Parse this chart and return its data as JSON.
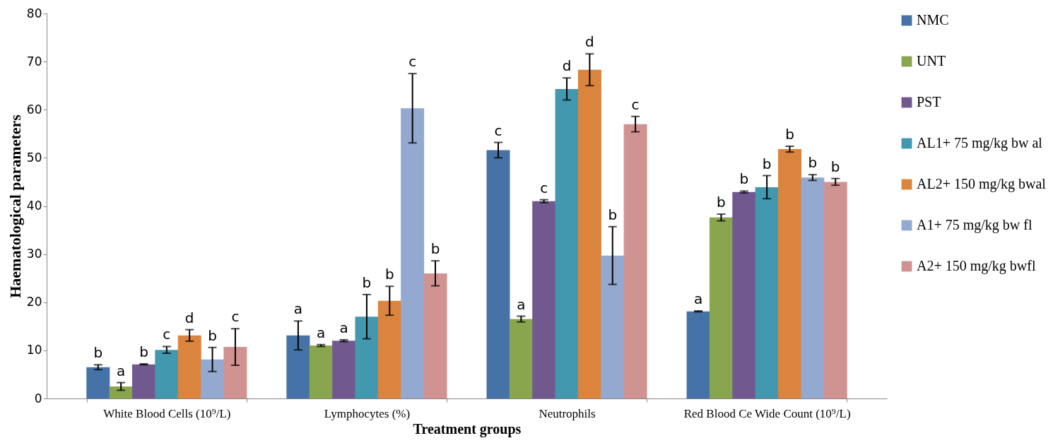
{
  "chart_data": {
    "type": "bar",
    "xlabel": "Treatment groups",
    "ylabel": "Haematological parameters",
    "categories": [
      "White Blood Cells (10⁹/L)",
      "Lymphocytes (%)",
      "Neutrophils",
      "Red Blood Ce Wide Count (10⁹/L)"
    ],
    "ylim": [
      0,
      80
    ],
    "yticks": [
      0,
      10,
      20,
      30,
      40,
      50,
      60,
      70,
      80
    ],
    "grid": false,
    "legend": "right",
    "series": [
      {
        "name": "NMC",
        "color": "#4572a7",
        "values": [
          6.5,
          13.1,
          51.6,
          18.1
        ],
        "errors": [
          0.5,
          3,
          1.6,
          0.1
        ],
        "value_labels": [
          "b",
          "a",
          "c",
          "a"
        ]
      },
      {
        "name": "UNT",
        "color": "#89a54e",
        "values": [
          2.5,
          11,
          16.5,
          37.6
        ],
        "errors": [
          0.8,
          0.2,
          0.6,
          0.7
        ],
        "value_labels": [
          "a",
          "a",
          "a",
          "b"
        ]
      },
      {
        "name": "PST",
        "color": "#71588f",
        "values": [
          7.1,
          12,
          41,
          42.9
        ],
        "errors": [
          0.1,
          0.2,
          0.3,
          0.2
        ],
        "value_labels": [
          "b",
          "a",
          "c",
          "b"
        ]
      },
      {
        "name": "AL1+ 75 mg/kg bw al",
        "color": "#4198af",
        "values": [
          10.1,
          17,
          64.3,
          43.9
        ],
        "errors": [
          0.7,
          4.6,
          2.3,
          2.4
        ],
        "value_labels": [
          "c",
          "b",
          "d",
          "b"
        ]
      },
      {
        "name": "AL2+ 150 mg/kg bwal",
        "color": "#db843d",
        "values": [
          13.1,
          20.3,
          68.3,
          51.8
        ],
        "errors": [
          1.2,
          3,
          3.3,
          0.6
        ],
        "value_labels": [
          "d",
          "b",
          "d",
          "b"
        ]
      },
      {
        "name": "A1+ 75 mg/kg bw fl",
        "color": "#93a9cf",
        "values": [
          8.1,
          60.3,
          29.7,
          45.9
        ],
        "errors": [
          2.5,
          7.2,
          6,
          0.6
        ],
        "value_labels": [
          "b",
          "c",
          "b",
          "b"
        ]
      },
      {
        "name": "A2+ 150 mg/kg bwfl",
        "color": "#d19392",
        "values": [
          10.7,
          26,
          57,
          45
        ],
        "errors": [
          3.8,
          2.6,
          1.6,
          0.7
        ],
        "value_labels": [
          "c",
          "b",
          "c",
          "b"
        ]
      }
    ]
  }
}
